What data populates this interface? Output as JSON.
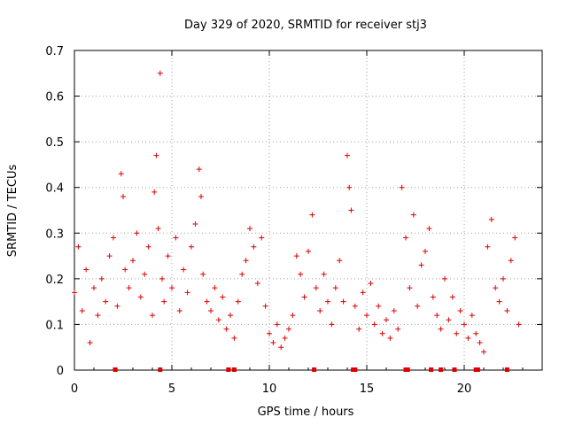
{
  "chart_data": {
    "type": "scatter",
    "title": "Day 329 of 2020, SRMTID for receiver stj3",
    "xlabel": "GPS time / hours",
    "ylabel": "SRMTID / TECUs",
    "xlim": [
      0,
      24
    ],
    "ylim": [
      0,
      0.7
    ],
    "xticks": [
      0,
      5,
      10,
      15,
      20
    ],
    "xtick_labels": [
      "0",
      "5",
      "10",
      "15",
      "20"
    ],
    "yticks": [
      0,
      0.1,
      0.2,
      0.3,
      0.4,
      0.5,
      0.6,
      0.7
    ],
    "ytick_labels": [
      "0",
      "0.1",
      "0.2",
      "0.3",
      "0.4",
      "0.5",
      "0.6",
      "0.7"
    ],
    "grid": true,
    "marker": "+",
    "series_color": "#e00000",
    "series": [
      {
        "name": "SRMTID",
        "x": [
          0.0,
          0.2,
          0.4,
          0.6,
          0.8,
          1.0,
          1.2,
          1.4,
          1.6,
          1.8,
          2.0,
          2.2,
          2.4,
          2.5,
          2.6,
          2.8,
          3.0,
          3.2,
          3.4,
          3.6,
          3.8,
          4.0,
          4.1,
          4.2,
          4.3,
          4.4,
          4.5,
          4.6,
          4.8,
          5.0,
          5.2,
          5.4,
          5.6,
          5.8,
          6.0,
          6.2,
          6.4,
          6.5,
          6.6,
          6.8,
          7.0,
          7.2,
          7.4,
          7.6,
          7.8,
          8.0,
          8.2,
          8.4,
          8.6,
          8.8,
          9.0,
          9.2,
          9.4,
          9.6,
          9.8,
          10.0,
          10.2,
          10.4,
          10.6,
          10.8,
          11.0,
          11.2,
          11.4,
          11.6,
          11.8,
          12.0,
          12.2,
          12.4,
          12.6,
          12.8,
          13.0,
          13.2,
          13.4,
          13.6,
          13.8,
          14.0,
          14.1,
          14.2,
          14.4,
          14.6,
          14.8,
          15.0,
          15.2,
          15.4,
          15.6,
          15.8,
          16.0,
          16.2,
          16.4,
          16.6,
          16.8,
          17.0,
          17.2,
          17.4,
          17.6,
          17.8,
          18.0,
          18.2,
          18.4,
          18.6,
          18.8,
          19.0,
          19.2,
          19.4,
          19.6,
          19.8,
          20.0,
          20.2,
          20.4,
          20.6,
          20.8,
          21.0,
          21.2,
          21.4,
          21.6,
          21.8,
          22.0,
          22.2,
          22.4,
          22.6,
          22.8
        ],
        "y": [
          0.17,
          0.27,
          0.13,
          0.22,
          0.06,
          0.18,
          0.12,
          0.2,
          0.15,
          0.25,
          0.29,
          0.14,
          0.43,
          0.38,
          0.22,
          0.18,
          0.24,
          0.3,
          0.16,
          0.21,
          0.27,
          0.12,
          0.39,
          0.47,
          0.31,
          0.65,
          0.2,
          0.15,
          0.25,
          0.18,
          0.29,
          0.13,
          0.22,
          0.17,
          0.27,
          0.32,
          0.44,
          0.38,
          0.21,
          0.15,
          0.13,
          0.18,
          0.11,
          0.16,
          0.09,
          0.12,
          0.07,
          0.15,
          0.21,
          0.24,
          0.31,
          0.27,
          0.19,
          0.29,
          0.14,
          0.08,
          0.06,
          0.1,
          0.05,
          0.07,
          0.09,
          0.12,
          0.25,
          0.21,
          0.16,
          0.26,
          0.34,
          0.18,
          0.13,
          0.21,
          0.15,
          0.1,
          0.18,
          0.24,
          0.15,
          0.47,
          0.4,
          0.35,
          0.14,
          0.09,
          0.17,
          0.12,
          0.19,
          0.1,
          0.14,
          0.08,
          0.11,
          0.07,
          0.13,
          0.09,
          0.4,
          0.29,
          0.18,
          0.34,
          0.14,
          0.23,
          0.26,
          0.31,
          0.16,
          0.12,
          0.09,
          0.2,
          0.11,
          0.16,
          0.08,
          0.13,
          0.1,
          0.07,
          0.12,
          0.08,
          0.06,
          0.04,
          0.27,
          0.33,
          0.18,
          0.15,
          0.2,
          0.13,
          0.24,
          0.29,
          0.1
        ]
      }
    ],
    "gap_markers_x": [
      2.1,
      4.4,
      7.9,
      8.2,
      12.3,
      14.3,
      14.4,
      17.0,
      17.1,
      18.3,
      18.8,
      19.5,
      20.6,
      20.7,
      22.2
    ]
  }
}
